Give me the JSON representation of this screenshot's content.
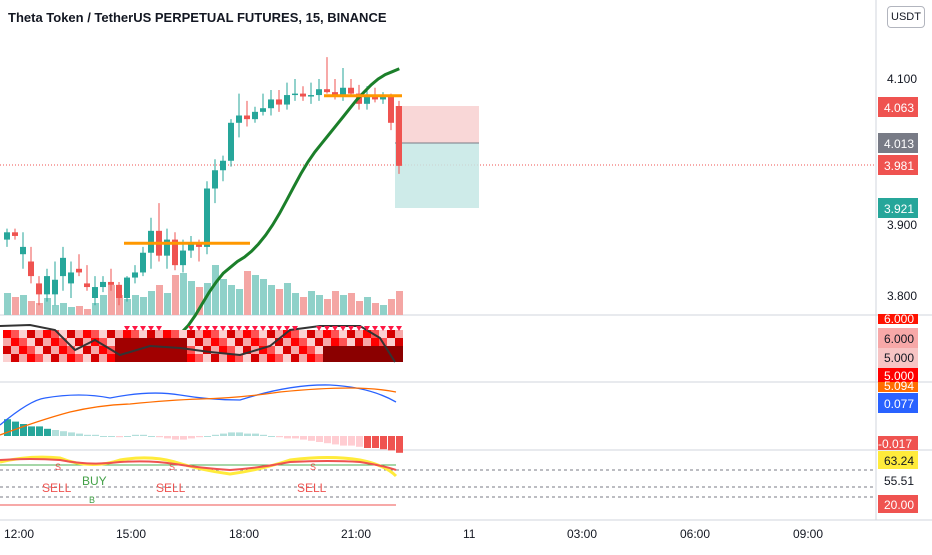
{
  "header": {
    "title": "Theta Token / TetherUS PERPETUAL FUTURES, 15, BINANCE",
    "currency_button": "USDT"
  },
  "colors": {
    "up": "#26a69a",
    "down": "#ef5350",
    "ema": "#1b7f2a",
    "level": "#ff9800",
    "vol_up": "#8fd1c9",
    "vol_down": "#f4a6a4",
    "macd": "#2962ff",
    "signal": "#ff6d00"
  },
  "chart_data": {
    "type": "candlestick",
    "title": "Theta Token / TetherUS PERPETUAL FUTURES, 15, BINANCE",
    "y_axis_ticks": [
      "4.100",
      "3.900",
      "3.800"
    ],
    "x_axis_ticks": [
      "12:00",
      "15:00",
      "18:00",
      "21:00",
      "11",
      "03:00",
      "06:00",
      "09:00"
    ],
    "price_labels": [
      {
        "text": "4.063",
        "value": 4.063,
        "color": "#ef5350"
      },
      {
        "text": "4.013",
        "value": 4.013,
        "color": "#787b86"
      },
      {
        "text": "3.981",
        "value": 3.981,
        "color": "#ef5350"
      },
      {
        "text": "3.921",
        "value": 3.921,
        "color": "#26a69a"
      }
    ],
    "candles": [
      [
        3.88,
        3.895,
        3.87,
        3.89
      ],
      [
        3.89,
        3.895,
        3.88,
        3.885
      ],
      [
        3.86,
        3.89,
        3.84,
        3.87
      ],
      [
        3.85,
        3.87,
        3.82,
        3.83
      ],
      [
        3.82,
        3.83,
        3.79,
        3.805
      ],
      [
        3.805,
        3.84,
        3.795,
        3.83
      ],
      [
        3.805,
        3.85,
        3.79,
        3.825
      ],
      [
        3.83,
        3.87,
        3.81,
        3.855
      ],
      [
        3.82,
        3.85,
        3.8,
        3.835
      ],
      [
        3.84,
        3.86,
        3.83,
        3.835
      ],
      [
        3.82,
        3.845,
        3.81,
        3.815
      ],
      [
        3.8,
        3.83,
        3.79,
        3.815
      ],
      [
        3.815,
        3.83,
        3.808,
        3.822
      ],
      [
        3.822,
        3.84,
        3.81,
        3.818
      ],
      [
        3.818,
        3.822,
        3.79,
        3.8
      ],
      [
        3.8,
        3.83,
        3.795,
        3.828
      ],
      [
        3.828,
        3.845,
        3.82,
        3.835
      ],
      [
        3.835,
        3.87,
        3.83,
        3.862
      ],
      [
        3.862,
        3.91,
        3.84,
        3.892
      ],
      [
        3.892,
        3.93,
        3.85,
        3.858
      ],
      [
        3.858,
        3.895,
        3.84,
        3.88
      ],
      [
        3.88,
        3.89,
        3.838,
        3.845
      ],
      [
        3.845,
        3.88,
        3.835,
        3.865
      ],
      [
        3.865,
        3.885,
        3.855,
        3.875
      ],
      [
        3.875,
        3.88,
        3.85,
        3.87
      ],
      [
        3.87,
        3.96,
        3.86,
        3.95
      ],
      [
        3.95,
        3.99,
        3.93,
        3.975
      ],
      [
        3.975,
        3.995,
        3.96,
        3.988
      ],
      [
        3.988,
        4.045,
        3.98,
        4.04
      ],
      [
        4.04,
        4.08,
        4.02,
        4.05
      ],
      [
        4.05,
        4.07,
        4.035,
        4.045
      ],
      [
        4.045,
        4.062,
        4.04,
        4.055
      ],
      [
        4.055,
        4.08,
        4.05,
        4.06
      ],
      [
        4.06,
        4.085,
        4.05,
        4.072
      ],
      [
        4.072,
        4.085,
        4.055,
        4.065
      ],
      [
        4.065,
        4.095,
        4.058,
        4.078
      ],
      [
        4.078,
        4.1,
        4.07,
        4.08
      ],
      [
        4.08,
        4.09,
        4.07,
        4.076
      ],
      [
        4.076,
        4.095,
        4.066,
        4.078
      ],
      [
        4.078,
        4.1,
        4.07,
        4.086
      ],
      [
        4.086,
        4.13,
        4.08,
        4.082
      ],
      [
        4.082,
        4.1,
        4.072,
        4.078
      ],
      [
        4.078,
        4.115,
        4.07,
        4.088
      ],
      [
        4.088,
        4.1,
        4.078,
        4.08
      ],
      [
        4.08,
        4.092,
        4.058,
        4.066
      ],
      [
        4.066,
        4.09,
        4.058,
        4.078
      ],
      [
        4.078,
        4.088,
        4.068,
        4.072
      ],
      [
        4.072,
        4.082,
        4.066,
        4.076
      ],
      [
        4.076,
        4.08,
        4.03,
        4.04
      ],
      [
        4.063,
        4.07,
        3.97,
        3.981
      ]
    ],
    "ema_values": [
      3.74,
      3.745,
      3.752,
      3.762,
      3.776,
      3.792,
      3.808,
      3.822,
      3.834,
      3.842,
      3.85,
      3.856,
      3.864,
      3.874,
      3.886,
      3.9,
      3.916,
      3.934,
      3.952,
      3.97,
      3.986,
      4.0,
      4.012,
      4.024,
      4.036,
      4.048,
      4.06,
      4.072,
      4.082,
      4.092,
      4.1,
      4.106,
      4.11,
      4.114
    ],
    "levels": [
      {
        "y": 3.875,
        "x_from_candle": 15,
        "x_to_candle": 30
      },
      {
        "y": 4.077,
        "x_from_candle": 40,
        "x_to_candle": 49
      }
    ],
    "position": {
      "entry": 4.013,
      "stop": 4.063,
      "target": 3.921
    },
    "volumes": [
      22,
      18,
      20,
      14,
      12,
      17,
      10,
      12,
      8,
      9,
      6,
      12,
      20,
      30,
      20,
      16,
      20,
      18,
      24,
      30,
      22,
      40,
      42,
      34,
      28,
      32,
      50,
      36,
      30,
      26,
      44,
      40,
      36,
      30,
      26,
      32,
      22,
      18,
      24,
      20,
      16,
      24,
      20,
      22,
      14,
      18,
      12,
      10,
      16,
      24
    ],
    "ind1_labels": [
      "6.000",
      "6.000",
      "5.000",
      "5.000"
    ],
    "macd_labels": [
      "5.094",
      "0.077",
      "-0.017"
    ],
    "macd_hist": [
      14,
      12,
      10,
      8,
      8,
      6,
      5,
      4,
      3,
      2,
      1,
      1,
      0,
      0,
      -1,
      0,
      1,
      1,
      0,
      -1,
      -2,
      -3,
      -3,
      -2,
      -1,
      0,
      1,
      2,
      3,
      3,
      2,
      2,
      1,
      0,
      -1,
      -2,
      -2,
      -3,
      -4,
      -5,
      -6,
      -7,
      -8,
      -8,
      -9,
      -10,
      -10,
      -11,
      -12,
      -14
    ],
    "sell_labels": [
      "SELL",
      "SELL",
      "SELL"
    ],
    "buy_label": "BUY",
    "ind2_labels": [
      "63.24",
      "55.51",
      "20.00"
    ],
    "marker_s": "S",
    "marker_b": "B"
  }
}
